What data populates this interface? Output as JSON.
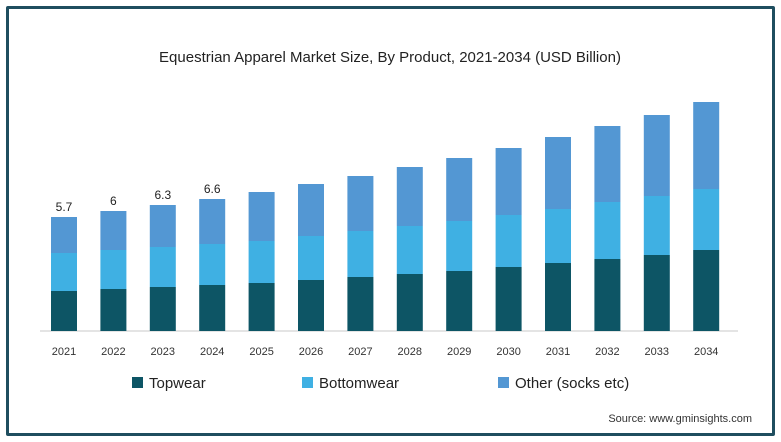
{
  "chart_data": {
    "type": "bar",
    "stacked": true,
    "title": "Equestrian Apparel Market Size, By Product, 2021-2034 (USD Billion)",
    "categories": [
      "2021",
      "2022",
      "2023",
      "2024",
      "2025",
      "2026",
      "2027",
      "2028",
      "2029",
      "2030",
      "2031",
      "2032",
      "2033",
      "2034"
    ],
    "series": [
      {
        "name": "Topwear",
        "color": "#0d5565",
        "values": [
          2.0,
          2.1,
          2.2,
          2.3,
          2.4,
          2.55,
          2.7,
          2.85,
          3.0,
          3.2,
          3.4,
          3.6,
          3.8,
          4.05
        ]
      },
      {
        "name": "Bottomwear",
        "color": "#3fb0e3",
        "values": [
          1.9,
          1.95,
          2.0,
          2.05,
          2.1,
          2.2,
          2.3,
          2.4,
          2.5,
          2.6,
          2.7,
          2.85,
          2.95,
          3.05
        ]
      },
      {
        "name": "Other (socks etc)",
        "color": "#5397d3",
        "values": [
          1.8,
          1.95,
          2.1,
          2.25,
          2.45,
          2.6,
          2.75,
          2.95,
          3.15,
          3.35,
          3.6,
          3.8,
          4.05,
          4.35
        ]
      }
    ],
    "data_labels": [
      "5.7",
      "6",
      "6.3",
      "6.6"
    ],
    "ylim": [
      0,
      12
    ],
    "xlabel": "",
    "ylabel": "",
    "grid": false,
    "legend_position": "bottom"
  },
  "source": "Source: www.gminsights.com"
}
